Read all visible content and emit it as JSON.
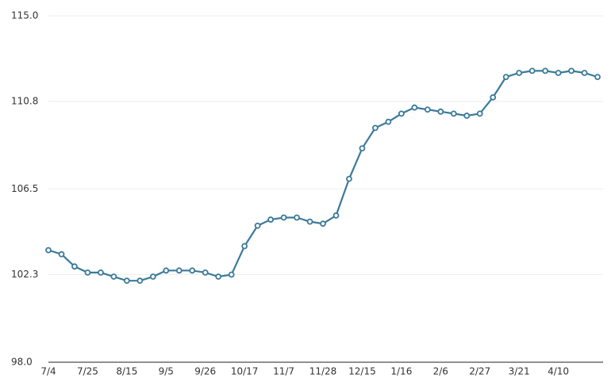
{
  "chart_data": {
    "type": "line",
    "categories": [
      "7/4",
      null,
      null,
      "7/25",
      null,
      null,
      "8/15",
      null,
      null,
      "9/5",
      null,
      null,
      "9/26",
      null,
      null,
      "10/17",
      null,
      null,
      "11/7",
      null,
      null,
      "11/28",
      null,
      null,
      "12/15",
      null,
      null,
      "1/16",
      null,
      null,
      "2/6",
      null,
      null,
      "2/27",
      null,
      null,
      "3/21",
      null,
      null,
      "4/10",
      null,
      null,
      null
    ],
    "values": [
      103.5,
      103.3,
      102.7,
      102.4,
      102.4,
      102.2,
      102.0,
      102.0,
      102.2,
      102.5,
      102.5,
      102.5,
      102.4,
      102.2,
      102.3,
      103.7,
      104.7,
      105.0,
      105.1,
      105.1,
      104.9,
      104.8,
      105.2,
      107.0,
      108.5,
      109.5,
      109.8,
      110.2,
      110.5,
      110.4,
      110.3,
      110.2,
      110.1,
      110.2,
      111.0,
      112.0,
      112.2,
      112.3,
      112.3,
      112.2,
      112.3,
      112.2,
      112.0
    ],
    "color": "#3b7a99",
    "ylim": [
      98,
      115
    ],
    "yticks": [
      {
        "value": 98,
        "label": "98.0"
      },
      102.3,
      106.5,
      110.8,
      {
        "value": 115,
        "label": "115.0"
      }
    ],
    "grid": true
  }
}
